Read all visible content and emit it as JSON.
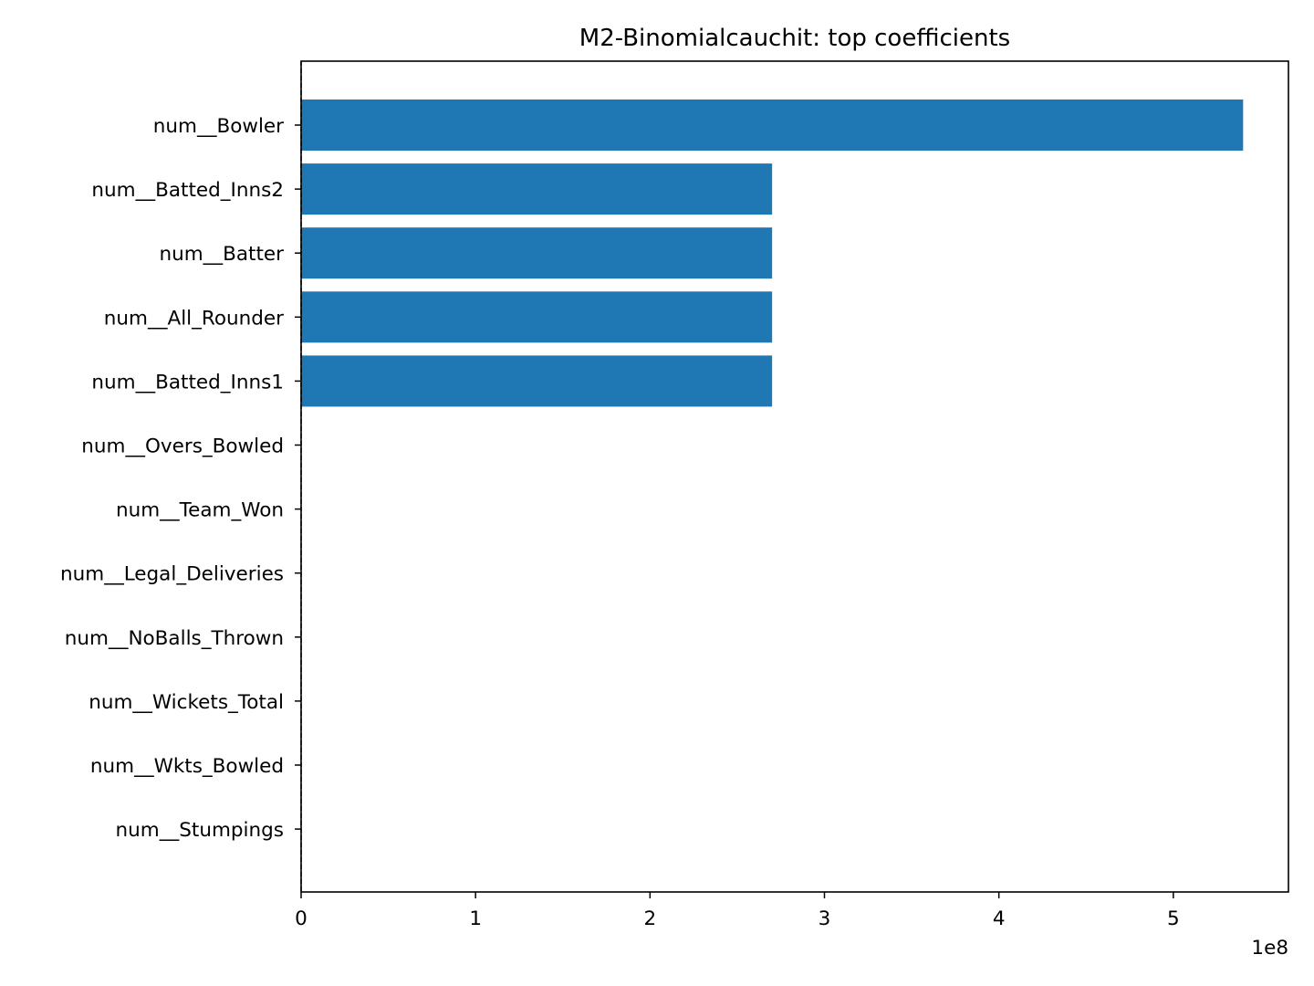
{
  "chart_data": {
    "type": "bar",
    "orientation": "horizontal",
    "title": "M2-Binomialcauchit: top coefficients",
    "xlabel": "",
    "ylabel": "",
    "x_offset_label": "1e8",
    "xlim": [
      0,
      566000000
    ],
    "x_ticks": [
      0,
      100000000,
      200000000,
      300000000,
      400000000,
      500000000
    ],
    "x_tick_labels": [
      "0",
      "1",
      "2",
      "3",
      "4",
      "5"
    ],
    "categories": [
      "num__Bowler",
      "num__Batted_Inns2",
      "num__Batter",
      "num__All_Rounder",
      "num__Batted_Inns1",
      "num__Overs_Bowled",
      "num__Team_Won",
      "num__Legal_Deliveries",
      "num__NoBalls_Thrown",
      "num__Wickets_Total",
      "num__Wkts_Bowled",
      "num__Stumpings"
    ],
    "values": [
      540000000,
      270000000,
      270000000,
      270000000,
      270000000,
      0,
      0,
      0,
      0,
      0,
      0,
      0
    ],
    "bar_color": "#1f77b4",
    "grid": false,
    "zero_line": "dashed"
  }
}
